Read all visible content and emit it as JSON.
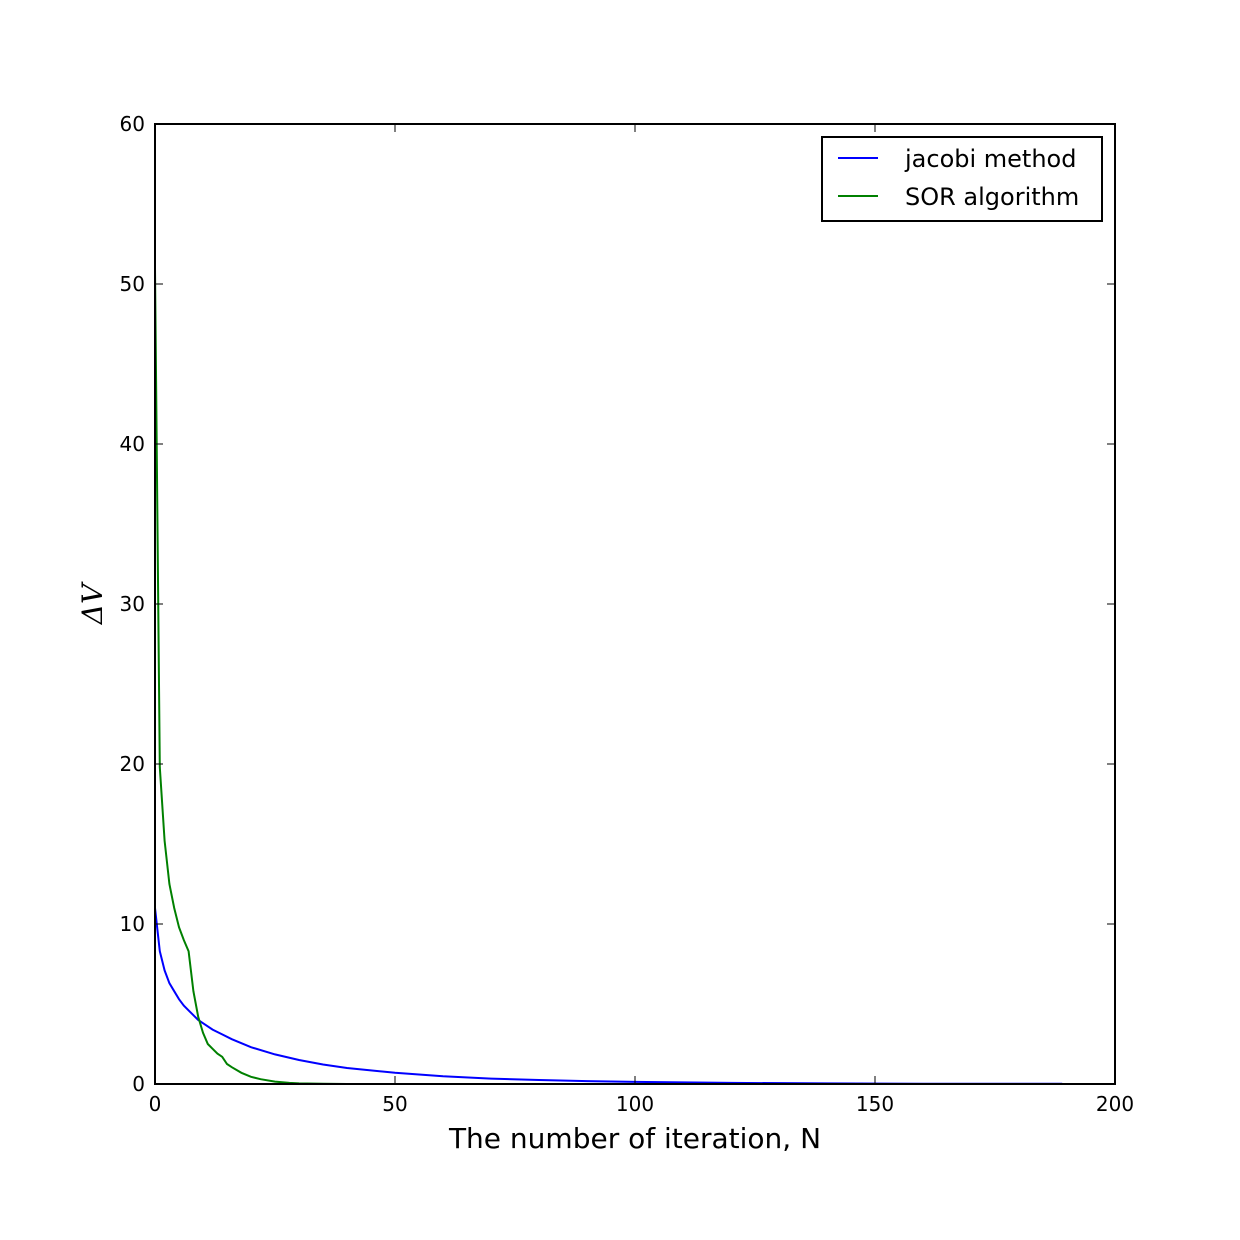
{
  "chart_data": {
    "type": "line",
    "xlabel": "The number of iteration, N",
    "ylabel": "ΔV",
    "xlim": [
      0,
      200
    ],
    "ylim": [
      0,
      60
    ],
    "xticks": [
      "0",
      "50",
      "100",
      "150",
      "200"
    ],
    "yticks": [
      "0",
      "10",
      "20",
      "30",
      "40",
      "50",
      "60"
    ],
    "grid": false,
    "legend_position": "top-right",
    "series": [
      {
        "name": "jacobi method",
        "color": "#0000ff",
        "x": [
          0,
          1,
          2,
          3,
          4,
          5,
          6,
          7,
          8,
          9,
          10,
          12,
          14,
          16,
          18,
          20,
          25,
          30,
          35,
          40,
          50,
          60,
          70,
          80,
          90,
          100,
          120,
          140,
          160,
          180,
          189
        ],
        "y": [
          11.0,
          8.3,
          7.1,
          6.3,
          5.8,
          5.3,
          4.9,
          4.6,
          4.3,
          4.0,
          3.8,
          3.4,
          3.1,
          2.8,
          2.55,
          2.3,
          1.85,
          1.5,
          1.22,
          1.0,
          0.7,
          0.48,
          0.34,
          0.25,
          0.18,
          0.13,
          0.07,
          0.04,
          0.02,
          0.01,
          0.01
        ]
      },
      {
        "name": "SOR algorithm",
        "color": "#008000",
        "x": [
          0,
          1,
          2,
          3,
          4,
          5,
          6,
          7,
          8,
          9,
          10,
          11,
          12,
          13,
          14,
          15,
          16,
          18,
          20,
          22,
          25,
          28,
          30,
          35,
          40,
          50,
          60,
          80,
          100,
          150,
          189
        ],
        "y": [
          51.0,
          19.8,
          15.2,
          12.5,
          11.0,
          9.8,
          9.0,
          8.3,
          5.8,
          4.2,
          3.2,
          2.5,
          2.2,
          1.9,
          1.7,
          1.25,
          1.05,
          0.7,
          0.45,
          0.3,
          0.15,
          0.07,
          0.04,
          0.01,
          0.0,
          0.0,
          0.0,
          0.0,
          0.0,
          0.0,
          0.0
        ]
      }
    ]
  }
}
